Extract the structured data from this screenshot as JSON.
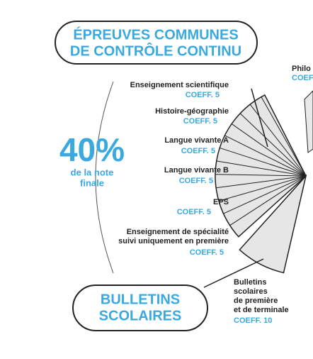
{
  "header": {
    "lines": [
      "ÉPREUVES COMMUNES",
      "DE CONTRÔLE CONTINU"
    ]
  },
  "share": {
    "value": "40%",
    "caption": [
      "de la note",
      "finale"
    ]
  },
  "subjects": [
    {
      "name": [
        "Enseignement scientifique"
      ],
      "coeff": "COEFF. 5"
    },
    {
      "name": [
        "Histoire-géographie"
      ],
      "coeff": "COEFF. 5"
    },
    {
      "name": [
        "Langue vivante A"
      ],
      "coeff": "COEFF. 5"
    },
    {
      "name": [
        "Langue vivante B"
      ],
      "coeff": "COEFF. 5"
    },
    {
      "name": [
        "EPS"
      ],
      "coeff": "COEFF. 5"
    },
    {
      "name": [
        "Enseignement de spécialité",
        "suivi uniquement en première"
      ],
      "coeff": "COEFF. 5"
    }
  ],
  "bulletins_box": {
    "lines": [
      "BULLETINS",
      "SCOLAIRES"
    ]
  },
  "bulletins": {
    "name": [
      "Bulletins",
      "scolaires",
      "de première",
      "et de terminale"
    ],
    "coeff": "COEFF. 10"
  },
  "right_cut": {
    "name": "Philo",
    "coeff": "COEF"
  }
}
